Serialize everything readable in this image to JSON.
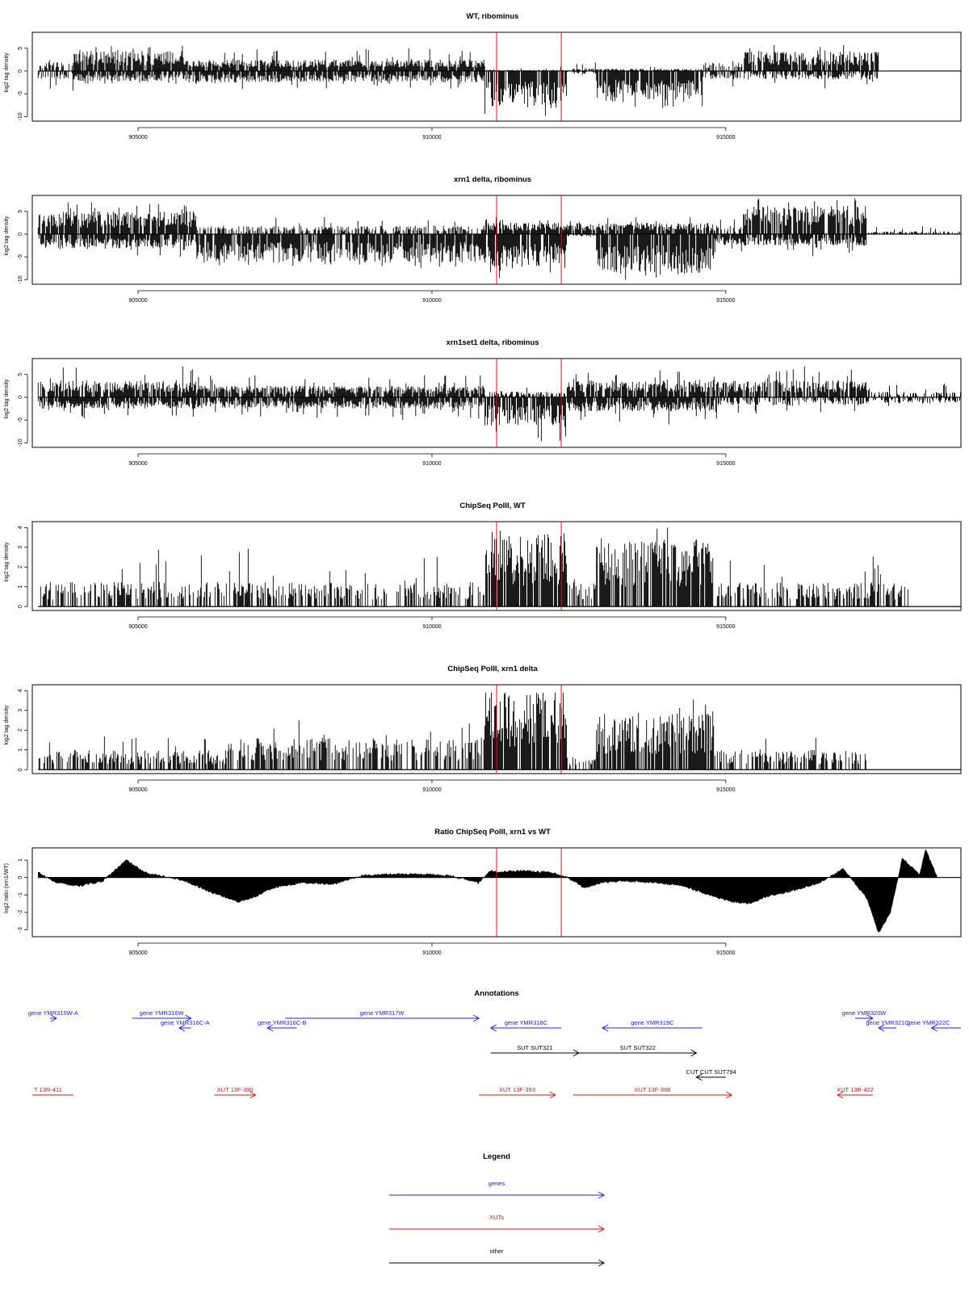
{
  "chart_data": [
    {
      "type": "bar",
      "title": "WT, ribominus",
      "ylabel": "log2 tag density",
      "xlim": [
        903200,
        919000
      ],
      "ylim": [
        -11,
        8.5
      ],
      "yticks": [
        5,
        0,
        -5,
        -10
      ],
      "xticks": [
        905000,
        910000,
        915000
      ],
      "vlines": [
        911100,
        912200
      ],
      "segments": [
        {
          "start": 903300,
          "end": 903900,
          "pos": 1.5,
          "neg": -1.5,
          "max": 3,
          "min": -4.5
        },
        {
          "start": 903900,
          "end": 905800,
          "pos": 3.5,
          "neg": -1.8,
          "max": 6,
          "min": -3
        },
        {
          "start": 905800,
          "end": 910900,
          "pos": 2,
          "neg": -2,
          "max": 5,
          "min": -4
        },
        {
          "start": 910900,
          "end": 912300,
          "pos": 0.2,
          "neg": -6.5,
          "max": 1,
          "min": -10
        },
        {
          "start": 912300,
          "end": 912800,
          "pos": 0.5,
          "neg": -0.5,
          "max": 2,
          "min": -2
        },
        {
          "start": 912800,
          "end": 914600,
          "pos": 0.4,
          "neg": -5.5,
          "max": 1,
          "min": -8.5
        },
        {
          "start": 914600,
          "end": 915300,
          "pos": 1.5,
          "neg": -1.5,
          "max": 4,
          "min": -4
        },
        {
          "start": 915300,
          "end": 917600,
          "pos": 3.5,
          "neg": -1.5,
          "max": 6,
          "min": -4
        },
        {
          "start": 917600,
          "end": 919000,
          "pos": 0,
          "neg": 0,
          "max": 1,
          "min": -1
        }
      ]
    },
    {
      "type": "bar",
      "title": "xrn1 delta, ribominus",
      "ylabel": "log2 tag density",
      "xlim": [
        903200,
        919000
      ],
      "ylim": [
        -11,
        8.5
      ],
      "yticks": [
        5,
        0,
        -5,
        -10
      ],
      "xticks": [
        905000,
        910000,
        915000
      ],
      "vlines": [
        911100,
        912200
      ],
      "segments": [
        {
          "start": 903300,
          "end": 906000,
          "pos": 4,
          "neg": -2.5,
          "max": 7,
          "min": -5
        },
        {
          "start": 906000,
          "end": 908300,
          "pos": 1.5,
          "neg": -5,
          "max": 4,
          "min": -7
        },
        {
          "start": 908300,
          "end": 910900,
          "pos": 1.5,
          "neg": -5,
          "max": 4,
          "min": -7.5
        },
        {
          "start": 910900,
          "end": 912300,
          "pos": 2,
          "neg": -6,
          "max": 4,
          "min": -10
        },
        {
          "start": 912300,
          "end": 912800,
          "pos": 2,
          "neg": -0.5,
          "max": 3,
          "min": -1
        },
        {
          "start": 912800,
          "end": 914800,
          "pos": 2,
          "neg": -7,
          "max": 4,
          "min": -10
        },
        {
          "start": 914800,
          "end": 915300,
          "pos": 1.5,
          "neg": -2,
          "max": 4,
          "min": -4
        },
        {
          "start": 915300,
          "end": 917400,
          "pos": 5,
          "neg": -2,
          "max": 8,
          "min": -5
        },
        {
          "start": 917400,
          "end": 919000,
          "pos": 0.5,
          "neg": 0,
          "max": 2,
          "min": -1
        }
      ]
    },
    {
      "type": "bar",
      "title": "xrn1set1 delta, ribominus",
      "ylabel": "log2 tag density",
      "xlim": [
        903200,
        919000
      ],
      "ylim": [
        -11,
        8.5
      ],
      "yticks": [
        5,
        0,
        -5,
        -10
      ],
      "xticks": [
        905000,
        910000,
        915000
      ],
      "vlines": [
        911100,
        912200
      ],
      "segments": [
        {
          "start": 903300,
          "end": 906000,
          "pos": 3,
          "neg": -2,
          "max": 7,
          "min": -5
        },
        {
          "start": 906000,
          "end": 910900,
          "pos": 2,
          "neg": -2,
          "max": 5,
          "min": -5
        },
        {
          "start": 910900,
          "end": 912300,
          "pos": 1,
          "neg": -5,
          "max": 3,
          "min": -10
        },
        {
          "start": 912300,
          "end": 914800,
          "pos": 3,
          "neg": -2.5,
          "max": 6,
          "min": -7
        },
        {
          "start": 914800,
          "end": 917400,
          "pos": 3,
          "neg": -1.5,
          "max": 7,
          "min": -5
        },
        {
          "start": 917400,
          "end": 919000,
          "pos": 1,
          "neg": -1,
          "max": 3,
          "min": -2
        }
      ]
    },
    {
      "type": "bar",
      "title": "ChipSeq PolII, WT",
      "ylabel": "log2 tag density",
      "xlim": [
        903200,
        919000
      ],
      "ylim": [
        -0.2,
        4.3
      ],
      "yticks": [
        0,
        1,
        2,
        3,
        4
      ],
      "xticks": [
        905000,
        910000,
        915000
      ],
      "vlines": [
        911100,
        912200
      ],
      "segments": [
        {
          "start": 903300,
          "end": 910900,
          "pos": 1,
          "neg": 0,
          "max": 3,
          "min": 0
        },
        {
          "start": 910900,
          "end": 912300,
          "pos": 3,
          "neg": 0,
          "max": 4,
          "min": 0
        },
        {
          "start": 912300,
          "end": 912800,
          "pos": 1,
          "neg": 0,
          "max": 1.6,
          "min": 0
        },
        {
          "start": 912800,
          "end": 914800,
          "pos": 2.8,
          "neg": 0,
          "max": 4,
          "min": 0
        },
        {
          "start": 914800,
          "end": 918100,
          "pos": 1,
          "neg": 0,
          "max": 2.6,
          "min": 0
        },
        {
          "start": 918100,
          "end": 919000,
          "pos": 0,
          "neg": 0,
          "max": 1.6,
          "min": 0
        }
      ]
    },
    {
      "type": "bar",
      "title": "ChipSeq PolII, xrn1 delta",
      "ylabel": "log2 tag density",
      "xlim": [
        903200,
        919000
      ],
      "ylim": [
        -0.2,
        4.3
      ],
      "yticks": [
        0,
        1,
        2,
        3,
        4
      ],
      "xticks": [
        905000,
        910000,
        915000
      ],
      "vlines": [
        911100,
        912200
      ],
      "segments": [
        {
          "start": 903300,
          "end": 906500,
          "pos": 0.8,
          "neg": 0,
          "max": 2.2,
          "min": 0
        },
        {
          "start": 906500,
          "end": 910900,
          "pos": 1.3,
          "neg": 0,
          "max": 2.6,
          "min": 0
        },
        {
          "start": 910900,
          "end": 912300,
          "pos": 3.2,
          "neg": 0,
          "max": 3.9,
          "min": 0
        },
        {
          "start": 912300,
          "end": 912800,
          "pos": 0.5,
          "neg": 0,
          "max": 1,
          "min": 0
        },
        {
          "start": 912800,
          "end": 914800,
          "pos": 2.3,
          "neg": 0,
          "max": 3.6,
          "min": 0
        },
        {
          "start": 914800,
          "end": 917400,
          "pos": 0.8,
          "neg": 0,
          "max": 1.8,
          "min": 0
        },
        {
          "start": 917400,
          "end": 919000,
          "pos": 0,
          "neg": 0,
          "max": 0.7,
          "min": 0
        }
      ]
    },
    {
      "type": "area",
      "title": "Ratio ChipSeq PolII, xrn1 vs WT",
      "ylabel": "log2 ratio (xrn1/WT)",
      "xlim": [
        903200,
        919000
      ],
      "ylim": [
        -3.4,
        1.7
      ],
      "yticks": [
        1,
        0,
        -1,
        -2,
        -3
      ],
      "xticks": [
        905000,
        910000,
        915000
      ],
      "vlines": [
        911100,
        912200
      ],
      "x": [
        903300,
        903600,
        904000,
        904400,
        904800,
        905100,
        905400,
        905800,
        906200,
        906700,
        907000,
        907300,
        907800,
        908300,
        908800,
        909300,
        909800,
        910300,
        910800,
        911000,
        911100,
        911500,
        912000,
        912300,
        912600,
        912900,
        913300,
        913800,
        914300,
        914800,
        915100,
        915400,
        915700,
        916100,
        916600,
        917000,
        917400,
        917600,
        917800,
        917900,
        918000,
        918300,
        918400,
        918600
      ],
      "values": [
        0.3,
        -0.3,
        -0.5,
        -0.2,
        1,
        0.3,
        0.1,
        -0.2,
        -0.8,
        -1.4,
        -1.1,
        -0.6,
        -0.3,
        -0.4,
        0.1,
        0.2,
        0.2,
        0.1,
        -0.3,
        0.4,
        0.3,
        0.4,
        0.3,
        0,
        -0.6,
        -0.3,
        -0.2,
        -0.3,
        -0.5,
        -1.1,
        -1.4,
        -1.5,
        -1.1,
        -0.8,
        -0.3,
        0.5,
        -1.2,
        -3.2,
        -2,
        -0.5,
        1.1,
        0.2,
        1.6,
        0
      ]
    }
  ],
  "annotations_panel": {
    "title": "Annotations",
    "genes_color": "#2020e0",
    "xuts_color": "#e01010",
    "other_color": "#000000",
    "items": [
      {
        "label": "gene YMR315W-A",
        "start": 903500,
        "end": 903500,
        "row": 0,
        "type": "gene",
        "dir": "right"
      },
      {
        "label": "gene YMR316W",
        "start": 904900,
        "end": 905900,
        "row": 0,
        "type": "gene",
        "dir": "right"
      },
      {
        "label": "gene YMR316C-A",
        "start": 905700,
        "end": 905900,
        "row": 1,
        "type": "gene",
        "dir": "left"
      },
      {
        "label": "gene YMR316C-B",
        "start": 907200,
        "end": 907700,
        "row": 1,
        "type": "gene",
        "dir": "left"
      },
      {
        "label": "gene YMR317W",
        "start": 907500,
        "end": 910800,
        "row": 0,
        "type": "gene",
        "dir": "right"
      },
      {
        "label": "gene YMR318C",
        "start": 911000,
        "end": 912200,
        "row": 1,
        "type": "gene",
        "dir": "left"
      },
      {
        "label": "gene YMR319C",
        "start": 912900,
        "end": 914600,
        "row": 1,
        "type": "gene",
        "dir": "left"
      },
      {
        "label": "gene YMR320W",
        "start": 917200,
        "end": 917500,
        "row": 0,
        "type": "gene",
        "dir": "right"
      },
      {
        "label": "gene YMR321C",
        "start": 917600,
        "end": 917900,
        "row": 1,
        "type": "gene",
        "dir": "left"
      },
      {
        "label": "gene YMR322C",
        "start": 918500,
        "end": 919000,
        "row": 1,
        "type": "gene",
        "dir": "left"
      },
      {
        "label": "SUT SUT321",
        "start": 911000,
        "end": 912500,
        "row": 2,
        "type": "other",
        "dir": "right"
      },
      {
        "label": "SUT SUT322",
        "start": 912500,
        "end": 914500,
        "row": 2,
        "type": "other",
        "dir": "right"
      },
      {
        "label": "CUT CUT SUT794",
        "start": 914500,
        "end": 915000,
        "row": 3,
        "type": "other",
        "dir": "left"
      },
      {
        "label": "T 13R-411",
        "start": 903200,
        "end": 903900,
        "row": 4,
        "type": "xut",
        "dir": "none"
      },
      {
        "label": "XUT 13F-390",
        "start": 906300,
        "end": 907000,
        "row": 4,
        "type": "xut",
        "dir": "right"
      },
      {
        "label": "XUT 13F-393",
        "start": 910800,
        "end": 912100,
        "row": 4,
        "type": "xut",
        "dir": "right"
      },
      {
        "label": "XUT 13F-398",
        "start": 912400,
        "end": 915100,
        "row": 4,
        "type": "xut",
        "dir": "right"
      },
      {
        "label": "XUT 13R-422",
        "start": 916900,
        "end": 917500,
        "row": 4,
        "type": "xut",
        "dir": "left"
      }
    ]
  },
  "legend_panel": {
    "title": "Legend",
    "entries": [
      {
        "label": "genes",
        "color": "#2020e0"
      },
      {
        "label": "XUTs",
        "color": "#e01010"
      },
      {
        "label": "other",
        "color": "#000000"
      }
    ]
  }
}
